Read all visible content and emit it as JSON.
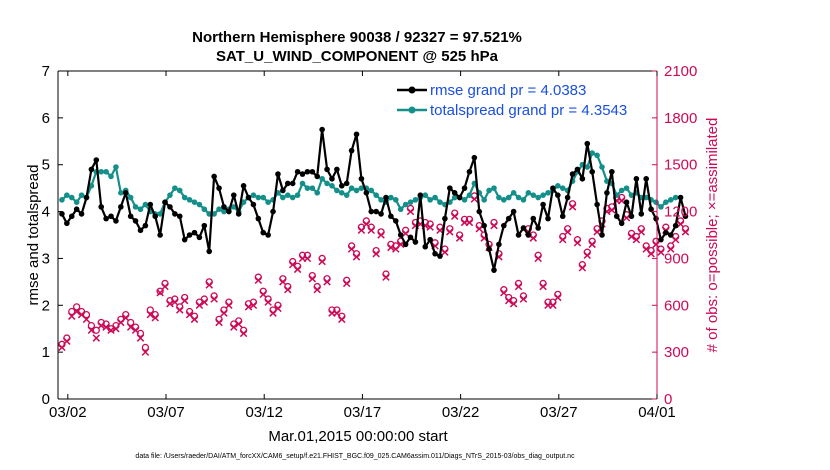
{
  "chart_data": {
    "type": "line",
    "title": "Northern Hemisphere 90038 / 92327 = 97.521%",
    "subtitle": "SAT_U_WIND_COMPONENT @ 525 hPa",
    "xlabel": "Mar.01,2015 00:00:00 start",
    "ylabel": "rmse and totalspread",
    "ylabel_right": "# of obs: o=possible; ×=assimilated",
    "footnote": "data file: /Users/raeder/DAI/ATM_forcXX/CAM6_setup/f.e21.FHIST_BGC.f09_025.CAM6assim.011/Diags_NTrS_2015-03/obs_diag_output.nc",
    "xlim": [
      0.5,
      31.0
    ],
    "ylim": [
      0,
      7
    ],
    "ylim_right": [
      0,
      2100
    ],
    "x_ticks": [
      1,
      6,
      11,
      16,
      21,
      26,
      31
    ],
    "x_tick_labels": [
      "03/02",
      "03/07",
      "03/12",
      "03/17",
      "03/22",
      "03/27",
      "04/01"
    ],
    "y_ticks": [
      "0",
      "1",
      "2",
      "3",
      "4",
      "5",
      "6",
      "7"
    ],
    "y_ticks_right": [
      "0",
      "300",
      "600",
      "900",
      "1200",
      "1500",
      "1800",
      "2100"
    ],
    "legend": [
      "rmse grand pr = 4.0383",
      "totalspread grand pr = 4.3543"
    ],
    "colors": {
      "rmse": "#000000",
      "spread": "#148f8a",
      "obs": "#cc0a57"
    },
    "series": [
      {
        "name": "rmse",
        "values": [
          3.95,
          3.75,
          3.9,
          4.05,
          3.95,
          4.3,
          4.9,
          5.1,
          4.1,
          3.85,
          3.9,
          3.8,
          4.1,
          4.4,
          3.9,
          3.8,
          3.6,
          3.7,
          4.15,
          3.9,
          3.5,
          4.2,
          4.1,
          3.95,
          3.9,
          3.4,
          3.5,
          3.55,
          3.45,
          3.7,
          3.15,
          4.75,
          4.5,
          4.1,
          4.0,
          4.35,
          3.95,
          4.55,
          4.3,
          4.15,
          3.85,
          3.55,
          3.5,
          4.0,
          4.8,
          4.45,
          4.6,
          4.6,
          4.85,
          4.8,
          4.85,
          4.85,
          4.75,
          5.75,
          4.9,
          4.7,
          4.9,
          4.55,
          4.6,
          5.3,
          5.65,
          4.7,
          4.4,
          4.0,
          4.0,
          3.95,
          4.3,
          3.9,
          3.8,
          3.5,
          3.3,
          3.45,
          3.35,
          4.35,
          3.25,
          3.4,
          3.1,
          3.05,
          3.85,
          4.5,
          4.4,
          4.3,
          4.5,
          4.85,
          5.15,
          4.0,
          3.7,
          3.2,
          2.75,
          3.3,
          3.7,
          3.85,
          4.0,
          3.5,
          3.65,
          3.5,
          3.85,
          3.65,
          4.15,
          3.85,
          4.5,
          4.35,
          3.9,
          4.3,
          4.8,
          4.9,
          4.7,
          5.45,
          4.85,
          4.15,
          3.5,
          4.4,
          4.85,
          3.9,
          3.75,
          4.2,
          3.9,
          4.7,
          3.95,
          4.7,
          4.05,
          3.85,
          3.4,
          3.55,
          3.5,
          3.7,
          4.3,
          3.9
        ]
      },
      {
        "name": "totalspread",
        "values": [
          4.25,
          4.35,
          4.3,
          4.2,
          4.35,
          4.3,
          4.55,
          4.85,
          4.85,
          4.85,
          4.75,
          4.95,
          4.4,
          4.45,
          4.3,
          4.1,
          4.05,
          4.15,
          4.0,
          3.95,
          3.95,
          4.2,
          4.35,
          4.5,
          4.45,
          4.3,
          4.25,
          4.2,
          4.15,
          4.05,
          3.95,
          3.95,
          4.05,
          4.0,
          4.05,
          4.1,
          4.0,
          4.2,
          4.3,
          4.35,
          4.3,
          4.3,
          4.2,
          4.25,
          4.4,
          4.3,
          4.35,
          4.3,
          4.35,
          4.6,
          4.5,
          4.5,
          4.4,
          4.7,
          4.6,
          4.55,
          4.45,
          4.4,
          4.35,
          4.5,
          4.45,
          4.5,
          4.5,
          4.45,
          4.35,
          4.25,
          4.2,
          4.3,
          4.25,
          4.05,
          4.15,
          4.2,
          4.25,
          4.3,
          4.35,
          4.25,
          4.3,
          4.2,
          4.15,
          4.2,
          4.3,
          4.3,
          4.25,
          4.35,
          4.6,
          4.4,
          4.25,
          4.45,
          4.5,
          4.3,
          4.25,
          4.3,
          4.4,
          4.3,
          4.25,
          4.4,
          4.35,
          4.3,
          4.35,
          4.4,
          4.45,
          4.55,
          4.5,
          4.45,
          4.65,
          4.85,
          5.0,
          4.95,
          5.25,
          5.2,
          4.95,
          4.65,
          4.6,
          4.35,
          4.45,
          4.5,
          4.35,
          4.4,
          4.3,
          4.3,
          4.25,
          4.2,
          4.1,
          4.2,
          4.25,
          4.3
        ]
      },
      {
        "name": "obs possible",
        "values": [
          350,
          390,
          560,
          590,
          560,
          540,
          470,
          440,
          490,
          480,
          450,
          470,
          510,
          540,
          490,
          460,
          420,
          330,
          570,
          540,
          690,
          740,
          630,
          640,
          590,
          650,
          560,
          530,
          620,
          640,
          750,
          660,
          510,
          570,
          620,
          480,
          500,
          440,
          610,
          620,
          780,
          690,
          640,
          570,
          600,
          770,
          720,
          880,
          850,
          920,
          920,
          790,
          720,
          900,
          770,
          570,
          570,
          530,
          760,
          980,
          930,
          1100,
          1140,
          1100,
          950,
          1070,
          800,
          990,
          980,
          1010,
          1080,
          1220,
          1130,
          1140,
          1130,
          1120,
          1000,
          1100,
          960,
          1090,
          1190,
          1050,
          1150,
          1150,
          1300,
          1110,
          1050,
          990,
          1130,
          930,
          700,
          650,
          630,
          740,
          660,
          1090,
          1050,
          920,
          740,
          620,
          620,
          670,
          1040,
          1090,
          1250,
          1020,
          860,
          940,
          1010,
          1090,
          1140,
          1220,
          1230,
          1290,
          1290,
          1180,
          1060,
          1040,
          1090,
          980,
          950,
          1010,
          960,
          1100,
          980,
          1040,
          1140,
          1090
        ]
      },
      {
        "name": "obs assimilated",
        "values": [
          330,
          370,
          530,
          560,
          540,
          510,
          440,
          390,
          470,
          460,
          440,
          450,
          490,
          520,
          460,
          440,
          390,
          300,
          540,
          520,
          680,
          720,
          610,
          620,
          570,
          630,
          540,
          510,
          600,
          620,
          730,
          640,
          490,
          550,
          600,
          460,
          480,
          420,
          590,
          600,
          760,
          670,
          620,
          550,
          580,
          750,
          700,
          860,
          830,
          900,
          900,
          770,
          700,
          880,
          750,
          550,
          550,
          510,
          740,
          960,
          910,
          1080,
          1120,
          1080,
          930,
          1050,
          780,
          970,
          960,
          990,
          1060,
          1200,
          1110,
          1120,
          1110,
          1100,
          980,
          1080,
          940,
          1070,
          1170,
          1030,
          1130,
          1130,
          1280,
          1090,
          1030,
          970,
          1110,
          910,
          680,
          630,
          610,
          720,
          640,
          1070,
          1030,
          900,
          720,
          600,
          600,
          650,
          1020,
          1070,
          1230,
          1000,
          840,
          920,
          990,
          1070,
          1120,
          1200,
          1210,
          1270,
          1270,
          1160,
          1040,
          1020,
          1070,
          960,
          930,
          990,
          940,
          1080,
          960,
          1020,
          1120,
          1070
        ]
      }
    ],
    "x_start": 0.7,
    "x_step": 0.25
  }
}
